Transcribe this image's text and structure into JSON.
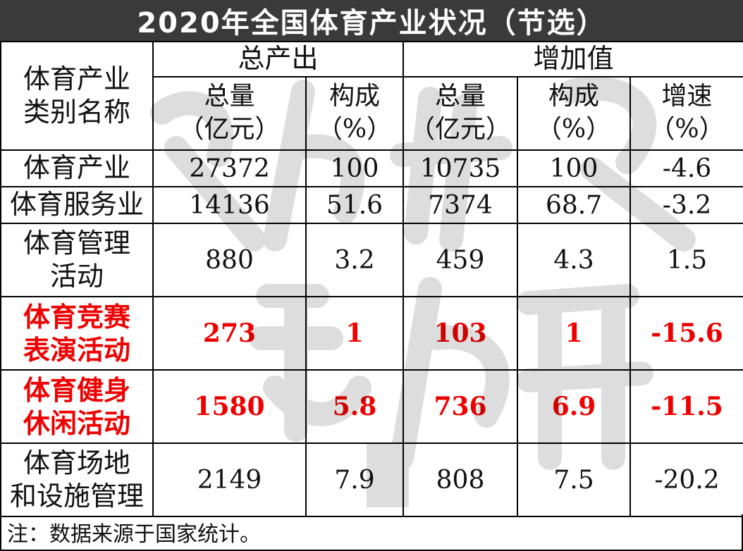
{
  "title": "2020年全国体育产业状况（节选）",
  "headers": {
    "category": "体育产业\n类别名称",
    "group_output": "总产出",
    "group_value_added": "增加值",
    "output_total": "总量\n（亿元）",
    "output_share": "构成\n（%）",
    "va_total": "总量\n（亿元）",
    "va_share": "构成\n（%）",
    "va_growth": "增速\n（%）"
  },
  "chart_data": {
    "type": "table",
    "title": "2020年全国体育产业状况（节选）",
    "columns": [
      "体育产业类别名称",
      "总产出·总量（亿元）",
      "总产出·构成（%）",
      "增加值·总量（亿元）",
      "增加值·构成（%）",
      "增加值·增速（%）"
    ],
    "rows": [
      {
        "name": "体育产业",
        "output_total": "27372",
        "output_share": "100",
        "va_total": "10735",
        "va_share": "100",
        "va_growth": "-4.6",
        "highlight": false
      },
      {
        "name": "体育服务业",
        "output_total": "14136",
        "output_share": "51.6",
        "va_total": "7374",
        "va_share": "68.7",
        "va_growth": "-3.2",
        "highlight": false
      },
      {
        "name": "体育管理\n活动",
        "output_total": "880",
        "output_share": "3.2",
        "va_total": "459",
        "va_share": "4.3",
        "va_growth": "1.5",
        "highlight": false
      },
      {
        "name": "体育竞赛\n表演活动",
        "output_total": "273",
        "output_share": "1",
        "va_total": "103",
        "va_share": "1",
        "va_growth": "-15.6",
        "highlight": true
      },
      {
        "name": "体育健身\n休闲活动",
        "output_total": "1580",
        "output_share": "5.8",
        "va_total": "736",
        "va_share": "6.9",
        "va_growth": "-11.5",
        "highlight": true
      },
      {
        "name": "体育场地\n和设施管理",
        "output_total": "2149",
        "output_share": "7.9",
        "va_total": "808",
        "va_share": "7.5",
        "va_growth": "-20.2",
        "highlight": false
      }
    ]
  },
  "colors": {
    "title_bg": "#3a3a3a",
    "title_text": "#ffffff",
    "highlight": "#ee0000",
    "border": "#000000"
  },
  "note": "注：数据来源于国家统计。"
}
